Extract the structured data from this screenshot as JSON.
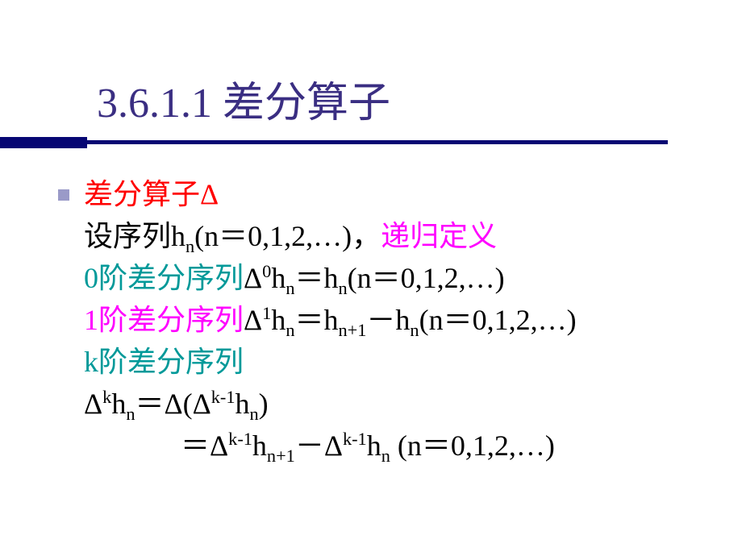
{
  "title": {
    "number": "3.6.1.1",
    "text": "差分算子",
    "number_color": "#3a2e82",
    "text_color": "#3a2e82",
    "fontsize": 52
  },
  "bar": {
    "color": "#070773",
    "left_width": 108,
    "left_height": 14,
    "right_width": 720,
    "right_height": 5
  },
  "bullet": {
    "color": "#9a9ac8",
    "size": 14
  },
  "lines": {
    "l1": {
      "text": "差分算子Δ",
      "color": "#ff0000"
    },
    "l2a": {
      "text": "设序列h",
      "color": "#000000"
    },
    "l2a_sub": {
      "text": "n",
      "color": "#000000"
    },
    "l2b": {
      "text": "(n＝0,1,2,…)，",
      "color": "#000000"
    },
    "l2c": {
      "text": "递归定义",
      "color": "#ff00ff"
    },
    "l3a": {
      "text": "0阶差分序列",
      "color": "#009999"
    },
    "l3b": {
      "text": "Δ",
      "color": "#000000"
    },
    "l3b_sup": {
      "text": "0",
      "color": "#000000"
    },
    "l3c": {
      "text": "h",
      "color": "#000000"
    },
    "l3c_sub": {
      "text": "n",
      "color": "#000000"
    },
    "l3d": {
      "text": "＝h",
      "color": "#000000"
    },
    "l3d_sub": {
      "text": "n",
      "color": "#000000"
    },
    "l3e": {
      "text": "(n＝0,1,2,…)",
      "color": "#000000"
    },
    "l4a": {
      "text": "1阶差分序列",
      "color": "#ff00ff"
    },
    "l4b": {
      "text": "Δ",
      "color": "#000000"
    },
    "l4b_sup": {
      "text": "1",
      "color": "#000000"
    },
    "l4c": {
      "text": "h",
      "color": "#000000"
    },
    "l4c_sub": {
      "text": "n",
      "color": "#000000"
    },
    "l4d": {
      "text": "＝h",
      "color": "#000000"
    },
    "l4d_sub": {
      "text": "n+1",
      "color": "#000000"
    },
    "l4e": {
      "text": "－h",
      "color": "#000000"
    },
    "l4e_sub": {
      "text": "n",
      "color": "#000000"
    },
    "l4f": {
      "text": "(n＝0,1,2,…)",
      "color": "#000000"
    },
    "l5": {
      "text": "k阶差分序列",
      "color": "#009999"
    },
    "l6a": {
      "text": "Δ",
      "color": "#000000"
    },
    "l6a_sup": {
      "text": "k",
      "color": "#000000"
    },
    "l6b": {
      "text": "h",
      "color": "#000000"
    },
    "l6b_sub": {
      "text": "n",
      "color": "#000000"
    },
    "l6c": {
      "text": "＝Δ(Δ",
      "color": "#000000"
    },
    "l6c_sup": {
      "text": "k-1",
      "color": "#000000"
    },
    "l6d": {
      "text": "h",
      "color": "#000000"
    },
    "l6d_sub": {
      "text": "n",
      "color": "#000000"
    },
    "l6e": {
      "text": ")",
      "color": "#000000"
    },
    "l7a": {
      "text": "＝Δ",
      "color": "#000000"
    },
    "l7a_sup": {
      "text": "k-1",
      "color": "#000000"
    },
    "l7b": {
      "text": "h",
      "color": "#000000"
    },
    "l7b_sub": {
      "text": "n+1",
      "color": "#000000"
    },
    "l7c": {
      "text": "－Δ",
      "color": "#000000"
    },
    "l7c_sup": {
      "text": "k-1",
      "color": "#000000"
    },
    "l7d": {
      "text": "h",
      "color": "#000000"
    },
    "l7d_sub": {
      "text": "n",
      "color": "#000000"
    },
    "l7e": {
      "text": " (n＝0,1,2,…)",
      "color": "#000000"
    }
  },
  "body_fontsize": 36,
  "line_height": 52,
  "background_color": "#ffffff"
}
